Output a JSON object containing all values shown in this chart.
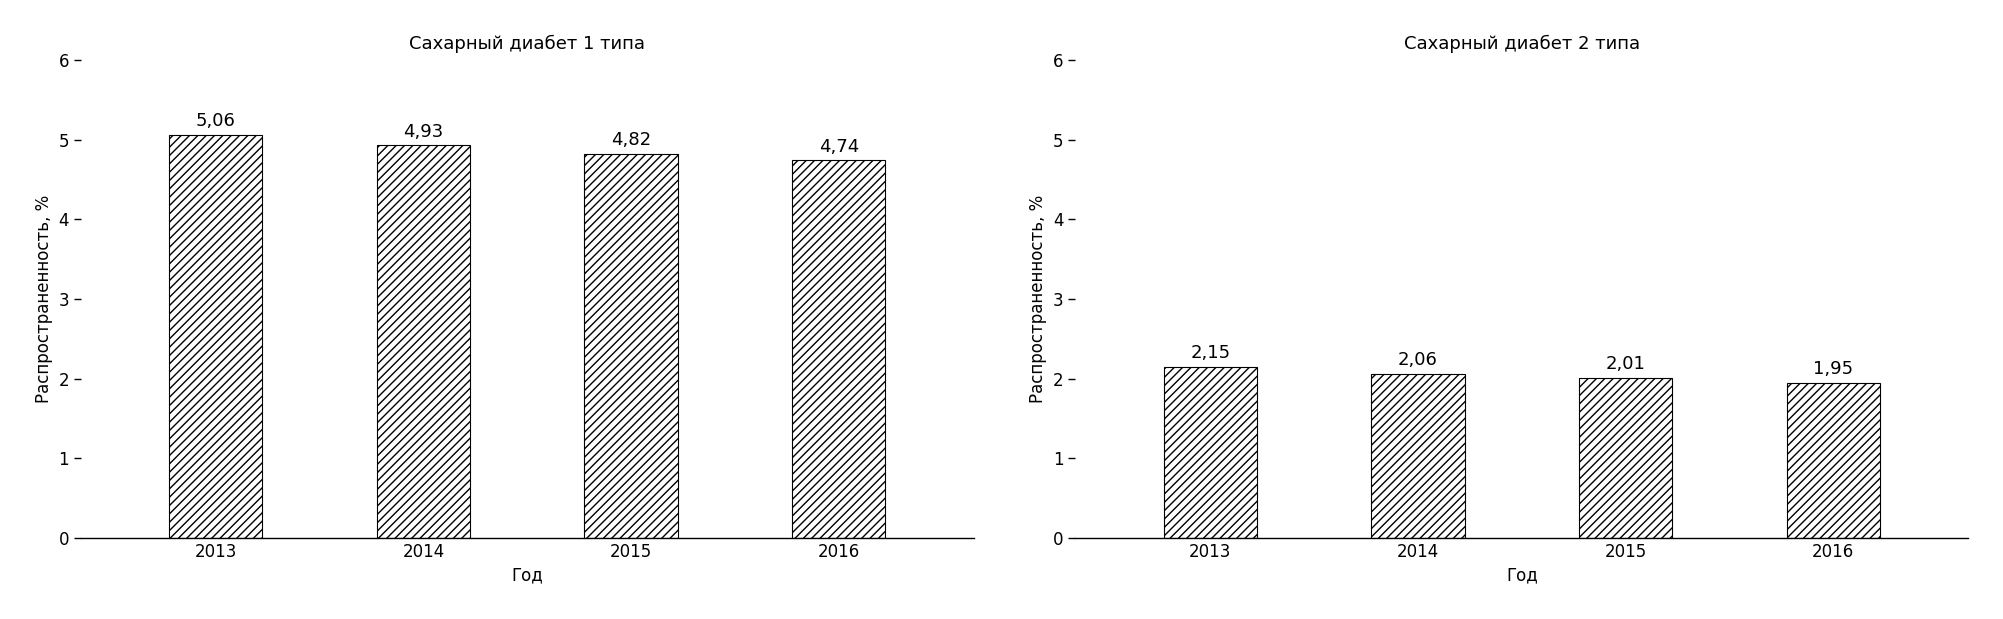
{
  "chart1": {
    "title": "Сахарный диабет 1 типа",
    "categories": [
      "2013",
      "2014",
      "2015",
      "2016"
    ],
    "values": [
      5.06,
      4.93,
      4.82,
      4.74
    ],
    "labels": [
      "5,06",
      "4,93",
      "4,82",
      "4,74"
    ],
    "ylim": [
      0,
      6
    ],
    "yticks": [
      0,
      1,
      2,
      3,
      4,
      5,
      6
    ],
    "ylabel": "Распространенность, %",
    "xlabel": "Год"
  },
  "chart2": {
    "title": "Сахарный диабет 2 типа",
    "categories": [
      "2013",
      "2014",
      "2015",
      "2016"
    ],
    "values": [
      2.15,
      2.06,
      2.01,
      1.95
    ],
    "labels": [
      "2,15",
      "2,06",
      "2,01",
      "1,95"
    ],
    "ylim": [
      0,
      6
    ],
    "yticks": [
      0,
      1,
      2,
      3,
      4,
      5,
      6
    ],
    "ylabel": "Распространенность, %",
    "xlabel": "Год"
  },
  "bar_color": "#ffffff",
  "bar_edgecolor": "#000000",
  "hatch": "////",
  "background_color": "#ffffff",
  "title_fontsize": 13,
  "label_fontsize": 12,
  "tick_fontsize": 12,
  "annotation_fontsize": 13,
  "bar_width": 0.45
}
